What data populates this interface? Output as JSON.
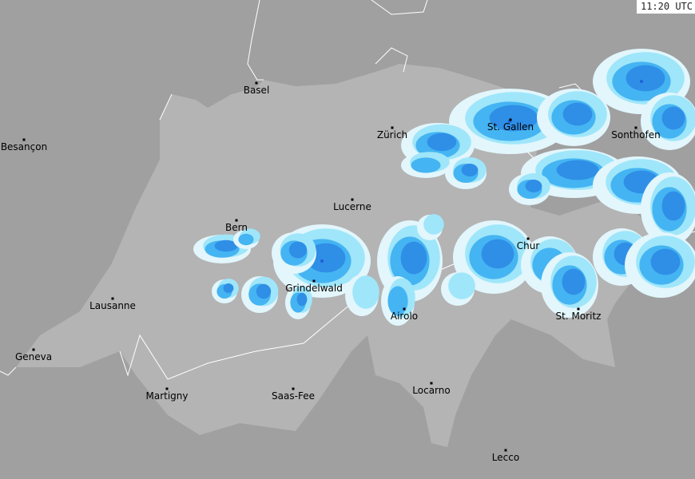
{
  "timestamp": "11:20 UTC",
  "colors": {
    "background": "#a0a0a0",
    "country": "#b4b4b4",
    "border": "#ffffff",
    "radar_levels": [
      "#e2f6fc",
      "#9fe6fa",
      "#45b4f2",
      "#2f8ee6",
      "#1f62d6"
    ]
  },
  "cities": [
    {
      "name": "Basel"
    },
    {
      "name": "Zürich"
    },
    {
      "name": "St. Gallen"
    },
    {
      "name": "Sonthofen"
    },
    {
      "name": "Besançon"
    },
    {
      "name": "Lucerne"
    },
    {
      "name": "Bern"
    },
    {
      "name": "Chur"
    },
    {
      "name": "Grindelwald"
    },
    {
      "name": "Lausanne"
    },
    {
      "name": "Airolo"
    },
    {
      "name": "St. Moritz"
    },
    {
      "name": "Geneva"
    },
    {
      "name": "Martigny"
    },
    {
      "name": "Saas-Fee"
    },
    {
      "name": "Locarno"
    },
    {
      "name": "Lecco"
    }
  ]
}
